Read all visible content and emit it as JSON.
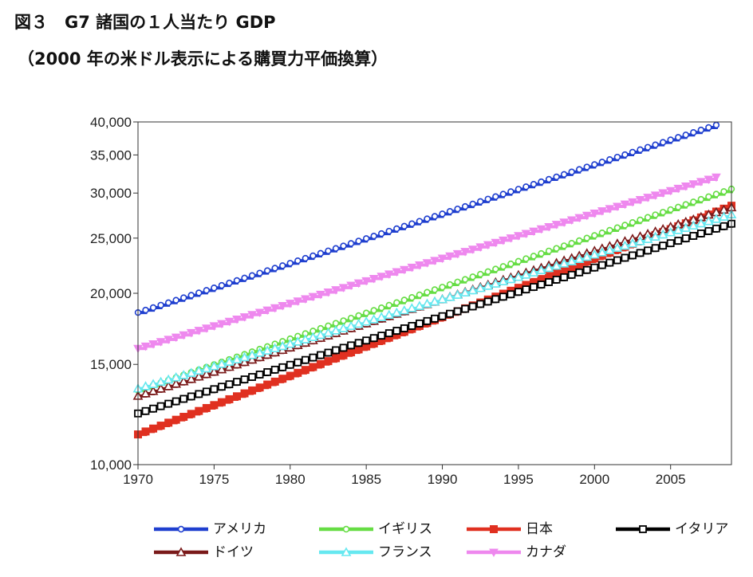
{
  "title": "図３　G7 諸国の１人当たり GDP",
  "subtitle": "（2000 年の米ドル表示による購買力平価換算）",
  "chart_data": {
    "type": "line",
    "title": "図３　G7 諸国の１人当たり GDP",
    "subtitle": "（2000 年の米ドル表示による購買力平価換算）",
    "xlabel": "",
    "ylabel": "",
    "x_scale": "linear",
    "y_scale": "log",
    "xlim": [
      1970,
      2009
    ],
    "ylim": [
      10000,
      40000
    ],
    "x_ticks": [
      1970,
      1975,
      1980,
      1985,
      1990,
      1995,
      2000,
      2005
    ],
    "x_tick_labels": [
      "1970",
      "1975",
      "1980",
      "1985",
      "1990",
      "1995",
      "2000",
      "2005"
    ],
    "y_ticks": [
      10000,
      15000,
      20000,
      25000,
      30000,
      35000,
      40000
    ],
    "y_tick_labels": [
      "10,000",
      "15,000",
      "20,000",
      "25,000",
      "30,000",
      "35,000",
      "40,000"
    ],
    "grid": false,
    "legend_position": "bottom",
    "series": [
      {
        "name": "アメリカ",
        "color": "#1f3fcf",
        "marker": "circle",
        "x_start": 1970,
        "x_end": 2008,
        "start": 18500,
        "end": 39500
      },
      {
        "name": "イギリス",
        "color": "#66dd44",
        "marker": "circle",
        "x_start": 1970,
        "x_end": 2009,
        "start": 13500,
        "end": 30500
      },
      {
        "name": "日本",
        "color": "#e03020",
        "marker": "square",
        "x_start": 1970,
        "x_end": 2009,
        "start": 11300,
        "end": 28500
      },
      {
        "name": "イタリア",
        "color": "#000000",
        "marker": "open-square",
        "x_start": 1970,
        "x_end": 2009,
        "start": 12300,
        "end": 26500
      },
      {
        "name": "ドイツ",
        "color": "#7a1a1a",
        "marker": "triangle-up",
        "x_start": 1970,
        "x_end": 2009,
        "start": 13200,
        "end": 28300
      },
      {
        "name": "フランス",
        "color": "#66e8f0",
        "marker": "triangle-up",
        "x_start": 1970,
        "x_end": 2009,
        "start": 13600,
        "end": 27500
      },
      {
        "name": "カナダ",
        "color": "#ee88ee",
        "marker": "triangle-down",
        "x_start": 1970,
        "x_end": 2008,
        "start": 16000,
        "end": 32000
      }
    ]
  }
}
